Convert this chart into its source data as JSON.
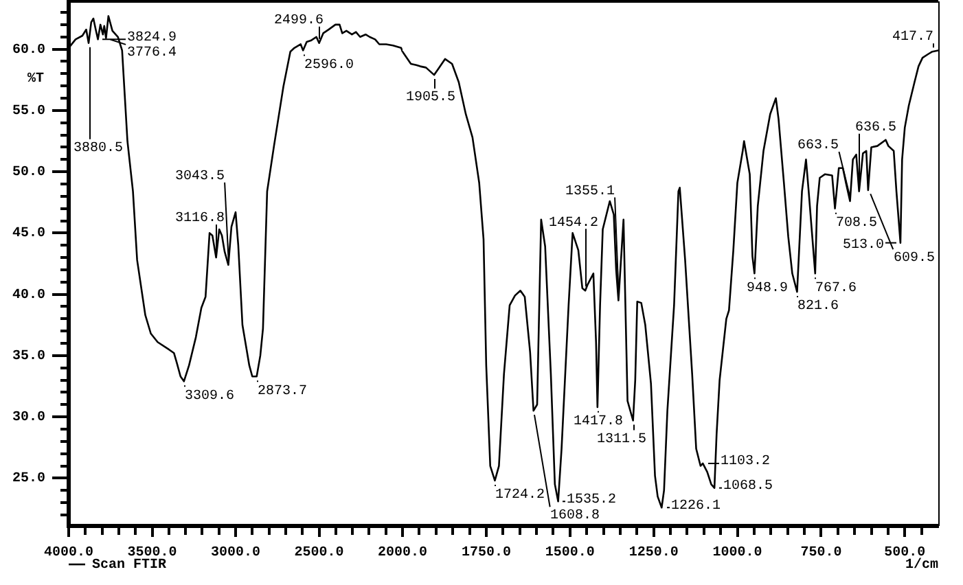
{
  "chart_data": [
    {
      "type": "line",
      "ylabel": "%T",
      "legend": "bottom left",
      "xlim": [
        4000,
        2000
      ],
      "ylim": [
        21.1,
        63.9
      ],
      "xticks": [
        {
          "value": 4000,
          "label": "4000.0"
        },
        {
          "value": 3900,
          "label": null
        },
        {
          "value": 3800,
          "label": null
        },
        {
          "value": 3700,
          "label": null
        },
        {
          "value": 3600,
          "label": null
        },
        {
          "value": 3500,
          "label": "3500.0"
        },
        {
          "value": 3400,
          "label": null
        },
        {
          "value": 3300,
          "label": null
        },
        {
          "value": 3200,
          "label": null
        },
        {
          "value": 3100,
          "label": null
        },
        {
          "value": 3000,
          "label": "3000.0"
        },
        {
          "value": 2900,
          "label": null
        },
        {
          "value": 2800,
          "label": null
        },
        {
          "value": 2700,
          "label": null
        },
        {
          "value": 2600,
          "label": null
        },
        {
          "value": 2500,
          "label": "2500.0"
        },
        {
          "value": 2400,
          "label": null
        },
        {
          "value": 2300,
          "label": null
        },
        {
          "value": 2200,
          "label": null
        },
        {
          "value": 2100,
          "label": null
        },
        {
          "value": 2000,
          "label": "2000.0"
        }
      ],
      "yticks": [
        {
          "value": 22,
          "label": null
        },
        {
          "value": 23,
          "label": null
        },
        {
          "value": 24,
          "label": null
        },
        {
          "value": 25,
          "label": "25.0"
        },
        {
          "value": 26,
          "label": null
        },
        {
          "value": 27,
          "label": null
        },
        {
          "value": 28,
          "label": null
        },
        {
          "value": 29,
          "label": null
        },
        {
          "value": 30,
          "label": "30.0"
        },
        {
          "value": 31,
          "label": null
        },
        {
          "value": 32,
          "label": null
        },
        {
          "value": 33,
          "label": null
        },
        {
          "value": 34,
          "label": null
        },
        {
          "value": 35,
          "label": "35.0"
        },
        {
          "value": 36,
          "label": null
        },
        {
          "value": 37,
          "label": null
        },
        {
          "value": 38,
          "label": null
        },
        {
          "value": 39,
          "label": null
        },
        {
          "value": 40,
          "label": "40.0"
        },
        {
          "value": 41,
          "label": null
        },
        {
          "value": 42,
          "label": null
        },
        {
          "value": 43,
          "label": null
        },
        {
          "value": 44,
          "label": null
        },
        {
          "value": 45,
          "label": "45.0"
        },
        {
          "value": 46,
          "label": null
        },
        {
          "value": 47,
          "label": null
        },
        {
          "value": 48,
          "label": null
        },
        {
          "value": 49,
          "label": null
        },
        {
          "value": 50,
          "label": "50.0"
        },
        {
          "value": 51,
          "label": null
        },
        {
          "value": 52,
          "label": null
        },
        {
          "value": 53,
          "label": null
        },
        {
          "value": 54,
          "label": null
        },
        {
          "value": 55,
          "label": "55.0"
        },
        {
          "value": 56,
          "label": null
        },
        {
          "value": 57,
          "label": null
        },
        {
          "value": 58,
          "label": null
        },
        {
          "value": 59,
          "label": null
        },
        {
          "value": 60,
          "label": "60.0"
        },
        {
          "value": 61,
          "label": null
        },
        {
          "value": 62,
          "label": null
        },
        {
          "value": 63,
          "label": null
        }
      ],
      "series": [
        {
          "name": "Scan FTIR",
          "color": "#000000",
          "x": [
            4000,
            3959,
            3918,
            3895,
            3880.5,
            3865,
            3852,
            3838,
            3824.9,
            3810,
            3795,
            3787,
            3776.4,
            3762,
            3738,
            3705,
            3689,
            3680,
            3664,
            3648,
            3615,
            3590,
            3541,
            3508,
            3467,
            3400,
            3369,
            3352,
            3330,
            3309.6,
            3279,
            3238,
            3205,
            3180,
            3156,
            3139,
            3116.8,
            3098,
            3082,
            3066,
            3043.5,
            3025,
            3000,
            2984,
            2959,
            2918,
            2900,
            2873.7,
            2852,
            2836,
            2811,
            2770,
            2713,
            2672,
            2648,
            2610,
            2596,
            2574,
            2549,
            2516,
            2499.6,
            2475,
            2443,
            2402,
            2377,
            2361,
            2336,
            2303,
            2279,
            2254,
            2221,
            2197,
            2164,
            2139,
            2098,
            2057,
            2008,
            2000
          ],
          "values": [
            60.1,
            60.8,
            61.1,
            61.6,
            60.5,
            62.2,
            62.5,
            61.6,
            60.8,
            62.0,
            61.2,
            61.9,
            60.9,
            62.7,
            61.5,
            61.0,
            60.3,
            59.9,
            56.2,
            52.5,
            48.4,
            42.8,
            38.3,
            36.8,
            36.1,
            35.5,
            35.2,
            34.4,
            33.3,
            32.9,
            34.2,
            36.5,
            38.9,
            39.8,
            45.0,
            44.8,
            43.0,
            45.3,
            44.8,
            43.5,
            42.4,
            45.5,
            46.7,
            44.0,
            37.5,
            34.2,
            33.3,
            33.3,
            35.0,
            37.2,
            48.4,
            52.1,
            57.0,
            59.8,
            60.1,
            60.4,
            59.9,
            60.6,
            60.7,
            61.0,
            60.5,
            61.3,
            61.6,
            62.0,
            62.0,
            61.3,
            61.5,
            61.2,
            61.4,
            61.0,
            61.2,
            61.0,
            60.8,
            60.4,
            60.4,
            60.3,
            60.1,
            59.8
          ]
        }
      ],
      "annotations": [
        {
          "text": "3880.5",
          "x": 3880.5,
          "y": 60.5
        },
        {
          "text": "3824.9",
          "x": 3824.9,
          "y": 60.8
        },
        {
          "text": "3776.4",
          "x": 3776.4,
          "y": 60.9
        },
        {
          "text": "3309.6",
          "x": 3309.6,
          "y": 32.9
        },
        {
          "text": "3116.8",
          "x": 3116.8,
          "y": 43.0
        },
        {
          "text": "3043.5",
          "x": 3043.5,
          "y": 42.4
        },
        {
          "text": "2873.7",
          "x": 2873.7,
          "y": 33.3
        },
        {
          "text": "2596.0",
          "x": 2596,
          "y": 59.9
        },
        {
          "text": "2499.6",
          "x": 2499.6,
          "y": 60.5
        }
      ]
    },
    {
      "type": "line",
      "xlabel": "1/cm",
      "xlim": [
        2000,
        400
      ],
      "ylim": [
        21.1,
        63.9
      ],
      "tick_labels": "x",
      "xticks": [
        {
          "value": 1950,
          "label": null
        },
        {
          "value": 1900,
          "label": null
        },
        {
          "value": 1850,
          "label": null
        },
        {
          "value": 1800,
          "label": null
        },
        {
          "value": 1750,
          "label": "1750.0"
        },
        {
          "value": 1700,
          "label": null
        },
        {
          "value": 1650,
          "label": null
        },
        {
          "value": 1600,
          "label": null
        },
        {
          "value": 1550,
          "label": null
        },
        {
          "value": 1500,
          "label": "1500.0"
        },
        {
          "value": 1450,
          "label": null
        },
        {
          "value": 1400,
          "label": null
        },
        {
          "value": 1350,
          "label": null
        },
        {
          "value": 1300,
          "label": null
        },
        {
          "value": 1250,
          "label": "1250.0"
        },
        {
          "value": 1200,
          "label": null
        },
        {
          "value": 1150,
          "label": null
        },
        {
          "value": 1100,
          "label": null
        },
        {
          "value": 1050,
          "label": null
        },
        {
          "value": 1000,
          "label": "1000.0"
        },
        {
          "value": 950,
          "label": null
        },
        {
          "value": 900,
          "label": null
        },
        {
          "value": 850,
          "label": null
        },
        {
          "value": 800,
          "label": null
        },
        {
          "value": 750,
          "label": "750.0"
        },
        {
          "value": 700,
          "label": null
        },
        {
          "value": 650,
          "label": null
        },
        {
          "value": 600,
          "label": null
        },
        {
          "value": 550,
          "label": null
        },
        {
          "value": 500,
          "label": "500.0"
        },
        {
          "value": 450,
          "label": null
        }
      ],
      "series": [
        {
          "color": "#000000",
          "x": [
            2000,
            1975,
            1959,
            1947,
            1930,
            1905.5,
            1893,
            1873,
            1852,
            1832,
            1811,
            1791,
            1771,
            1758,
            1750,
            1738,
            1724.2,
            1712,
            1697,
            1680,
            1664,
            1648,
            1635,
            1619,
            1608.8,
            1598,
            1586,
            1574,
            1557,
            1545,
            1535.2,
            1525,
            1504,
            1492,
            1475,
            1463,
            1454.2,
            1447,
            1430,
            1422,
            1417.8,
            1410,
            1402,
            1381,
            1369,
            1362,
            1355.1,
            1340,
            1328,
            1311.5,
            1305,
            1299,
            1287,
            1275,
            1258,
            1246,
            1238,
            1226.1,
            1219,
            1209,
            1189,
            1176,
            1172,
            1156,
            1135,
            1123,
            1110,
            1103.2,
            1090,
            1078,
            1068.5,
            1062,
            1053,
            1033,
            1025,
            1012,
            1000,
            984,
            980,
            963,
            955,
            948.9,
            939,
            922,
            902,
            885,
            877,
            861,
            848,
            836,
            821.6,
            807,
            795,
            787,
            767.6,
            762,
            754,
            738,
            717,
            708.5,
            697,
            685,
            675,
            663.5,
            655,
            645,
            636.5,
            625,
            615,
            609.5,
            600,
            582,
            557,
            549,
            533,
            525,
            513,
            508,
            500,
            488,
            471,
            459,
            447,
            430,
            417.7,
            400
          ],
          "values": [
            59.8,
            58.8,
            58.7,
            58.6,
            58.5,
            57.9,
            58.4,
            59.2,
            58.8,
            57.3,
            54.7,
            52.8,
            49.1,
            44.5,
            34.2,
            26.0,
            24.8,
            26.0,
            33.5,
            39.1,
            39.9,
            40.3,
            39.8,
            35.3,
            30.5,
            31.0,
            46.1,
            43.9,
            33.5,
            24.5,
            23.1,
            27.4,
            39.1,
            45.0,
            43.6,
            40.5,
            40.3,
            40.8,
            41.7,
            36.1,
            30.8,
            39.1,
            45.3,
            47.6,
            46.5,
            42.0,
            39.5,
            46.1,
            31.3,
            29.7,
            33.0,
            39.4,
            39.3,
            37.5,
            32.7,
            25.2,
            23.5,
            22.6,
            24.0,
            30.5,
            39.1,
            48.4,
            48.7,
            42.8,
            33.5,
            27.4,
            26.0,
            26.2,
            25.5,
            24.5,
            24.2,
            28.6,
            33.0,
            38.0,
            38.7,
            43.6,
            49.1,
            51.7,
            52.5,
            49.8,
            43.1,
            41.7,
            47.2,
            51.7,
            54.7,
            56.0,
            54.3,
            49.1,
            44.7,
            41.7,
            40.2,
            48.4,
            51.0,
            48.4,
            41.7,
            47.2,
            49.5,
            49.8,
            49.7,
            47.0,
            50.3,
            50.3,
            49.0,
            47.6,
            51.0,
            51.4,
            48.4,
            51.5,
            51.7,
            48.5,
            52.0,
            52.1,
            52.6,
            52.1,
            51.7,
            48.4,
            44.2,
            51.0,
            53.6,
            55.4,
            57.3,
            58.6,
            59.3,
            59.6,
            59.8,
            59.9
          ]
        }
      ],
      "annotations": [
        {
          "text": "1905.5",
          "x": 1905.5,
          "y": 57.9
        },
        {
          "text": "1724.2",
          "x": 1724.2,
          "y": 24.8
        },
        {
          "text": "1608.8",
          "x": 1608.8,
          "y": 30.5
        },
        {
          "text": "1535.2",
          "x": 1535.2,
          "y": 23.1
        },
        {
          "text": "1454.2",
          "x": 1454.2,
          "y": 40.3
        },
        {
          "text": "1417.8",
          "x": 1417.8,
          "y": 30.8
        },
        {
          "text": "1355.1",
          "x": 1355.1,
          "y": 39.5
        },
        {
          "text": "1311.5",
          "x": 1311.5,
          "y": 29.7
        },
        {
          "text": "1226.1",
          "x": 1226.1,
          "y": 22.6
        },
        {
          "text": "1103.2",
          "x": 1103.2,
          "y": 26.2
        },
        {
          "text": "1068.5",
          "x": 1068.5,
          "y": 24.2
        },
        {
          "text": "948.9",
          "x": 948.9,
          "y": 41.7
        },
        {
          "text": "821.6",
          "x": 821.6,
          "y": 40.2
        },
        {
          "text": "767.6",
          "x": 767.6,
          "y": 41.7
        },
        {
          "text": "708.5",
          "x": 708.5,
          "y": 47.0
        },
        {
          "text": "663.5",
          "x": 663.5,
          "y": 47.6
        },
        {
          "text": "636.5",
          "x": 636.5,
          "y": 48.4
        },
        {
          "text": "609.5",
          "x": 609.5,
          "y": 48.5
        },
        {
          "text": "513.0",
          "x": 513,
          "y": 44.2
        },
        {
          "text": "417.7",
          "x": 417.7,
          "y": 59.8
        }
      ]
    }
  ]
}
